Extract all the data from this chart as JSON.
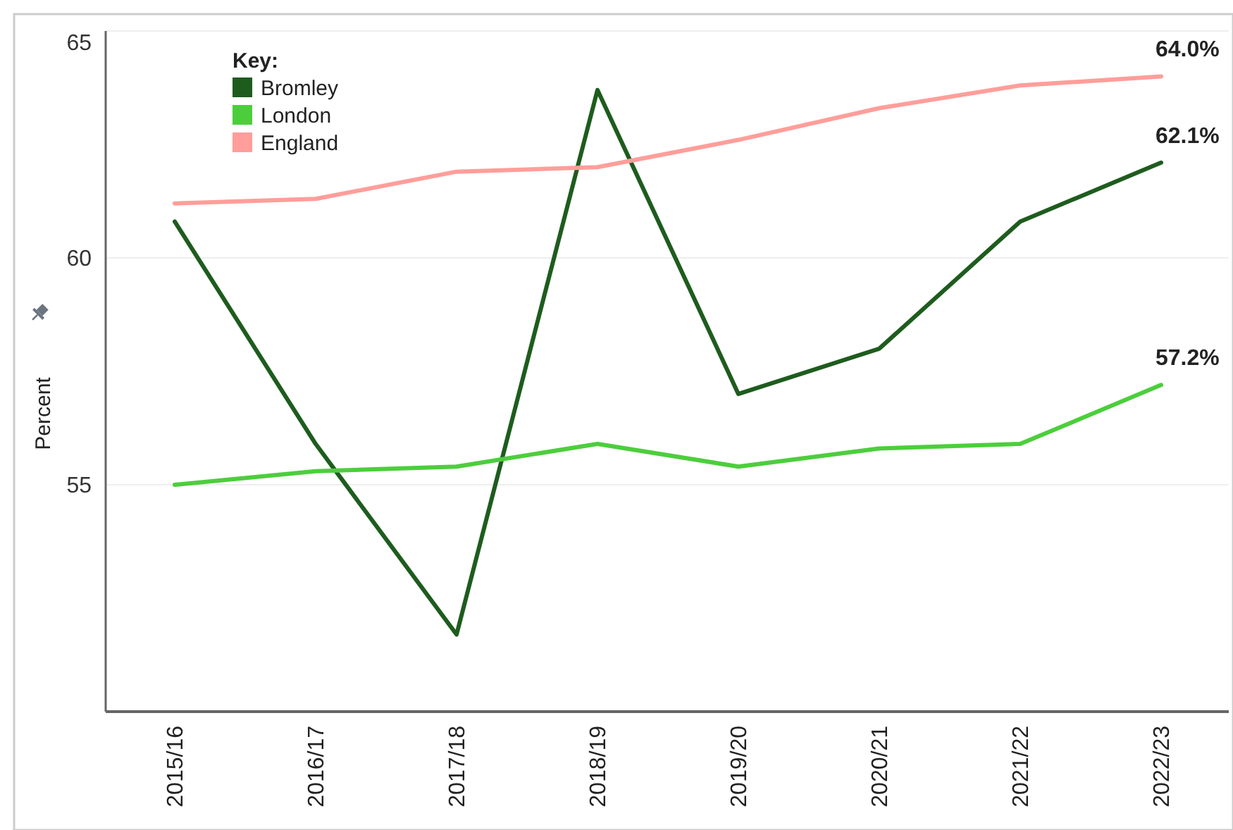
{
  "chart_data": {
    "type": "line",
    "ylabel": "Percent",
    "legend_title": "Key:",
    "legend": "top left",
    "grid": "y",
    "marker": "none",
    "line_style": "solid",
    "categories": [
      "2015/16",
      "2016/17",
      "2017/18",
      "2018/19",
      "2019/20",
      "2020/21",
      "2021/22",
      "2022/23"
    ],
    "ylim": [
      50,
      65
    ],
    "yticks": [
      55,
      60,
      65
    ],
    "series": [
      {
        "name": "Bromley",
        "color": "#1e5c1e",
        "values": [
          60.8,
          55.9,
          51.7,
          63.7,
          57.0,
          58.0,
          60.8,
          62.1
        ],
        "value_labels": [
          null,
          null,
          null,
          null,
          null,
          null,
          null,
          "62.1%"
        ]
      },
      {
        "name": "London",
        "color": "#4cce3c",
        "values": [
          55.0,
          55.3,
          55.4,
          55.9,
          55.4,
          55.8,
          55.9,
          57.2
        ],
        "value_labels": [
          null,
          null,
          null,
          null,
          null,
          null,
          null,
          "57.2%"
        ]
      },
      {
        "name": "England",
        "color": "#ff9e9a",
        "values": [
          61.2,
          61.3,
          61.9,
          62.0,
          62.6,
          63.3,
          63.8,
          64.0
        ],
        "value_labels": [
          null,
          null,
          null,
          null,
          null,
          null,
          null,
          "64.0%"
        ]
      }
    ]
  }
}
